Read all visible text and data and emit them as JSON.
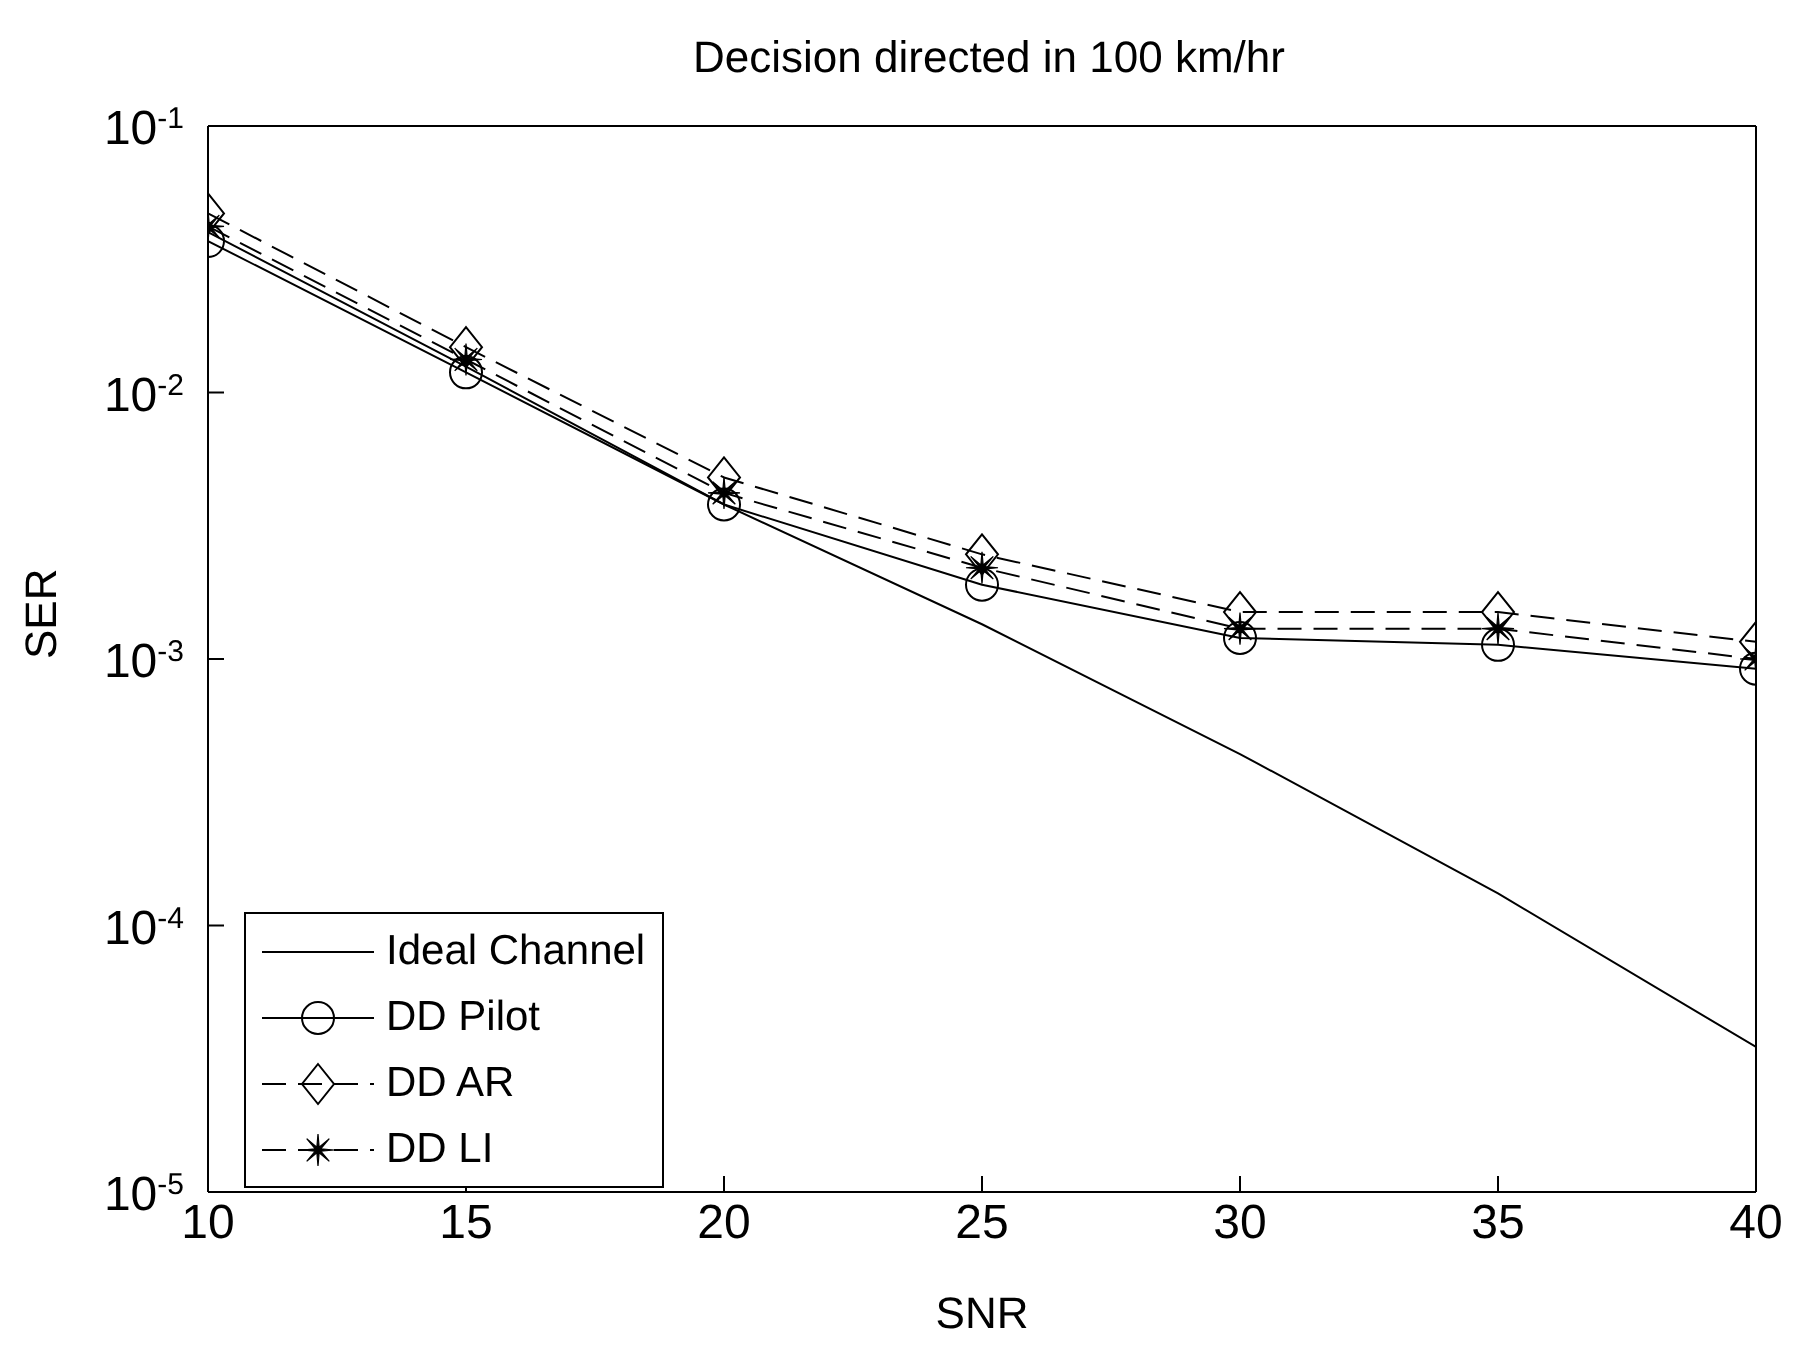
{
  "chart_data": {
    "type": "line",
    "title": "Decision directed in 100 km/hr",
    "xlabel": "SNR",
    "ylabel": "SER",
    "log": "y",
    "x": [
      10,
      15,
      20,
      25,
      30,
      35,
      40
    ],
    "series": [
      {
        "name": "Ideal Channel",
        "color": "#000000",
        "marker": "none",
        "line_style": "solid",
        "values": [
          0.04,
          0.0125,
          0.0038,
          0.00135,
          0.00044,
          0.000132,
          3.5e-05
        ]
      },
      {
        "name": "DD Pilot",
        "color": "#000000",
        "marker": "circle",
        "line_style": "solid",
        "values": [
          0.037,
          0.0119,
          0.0038,
          0.0019,
          0.0012,
          0.00113,
          0.00092
        ]
      },
      {
        "name": "DD AR",
        "color": "#000000",
        "marker": "diamond",
        "line_style": "dashed",
        "values": [
          0.047,
          0.0148,
          0.0048,
          0.00247,
          0.0015,
          0.0015,
          0.00116
        ]
      },
      {
        "name": "DD LI",
        "color": "#000000",
        "marker": "star",
        "line_style": "dashed",
        "values": [
          0.042,
          0.0133,
          0.0042,
          0.0022,
          0.0013,
          0.0013,
          0.001
        ]
      }
    ],
    "xlim": [
      10,
      40
    ],
    "xticks": [
      10,
      15,
      20,
      25,
      30,
      35,
      40
    ],
    "ylim": [
      1e-05,
      0.1
    ],
    "yticks": [
      {
        "value": 1e-05,
        "label": "10$^{-5}$"
      },
      {
        "value": 0.0001,
        "label": "10$^{-4}$"
      },
      {
        "value": 0.001,
        "label": "10$^{-3}$"
      },
      {
        "value": 0.01,
        "label": "10$^{-2}$"
      },
      {
        "value": 0.1,
        "label": "10$^{-1}$"
      }
    ],
    "grid": false,
    "legend": "bottom left"
  }
}
